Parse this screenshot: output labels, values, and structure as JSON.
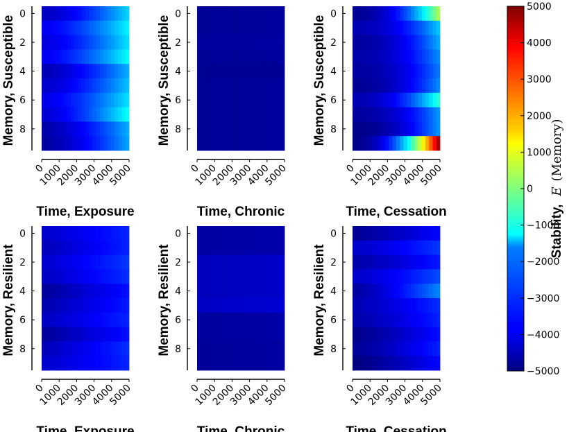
{
  "chart_data": {
    "type": "heatmap",
    "x_ticks": [
      "0",
      "1000",
      "2000",
      "3000",
      "4000",
      "5000"
    ],
    "x_tick_values": [
      0,
      1000,
      2000,
      3000,
      4000,
      5000
    ],
    "xlim": [
      0,
      5000
    ],
    "y_ticks": [
      "0",
      "2",
      "4",
      "6",
      "8"
    ],
    "y_tick_values": [
      0,
      2,
      4,
      6,
      8
    ],
    "ylim": [
      9.5,
      -0.5
    ],
    "colorbar": {
      "label_bold": "Stability,",
      "label_math": "E (Memory)",
      "ticks": [
        "5000",
        "4000",
        "3000",
        "2000",
        "1000",
        "0",
        "−1000",
        "−2000",
        "−3000",
        "−4000",
        "−5000"
      ],
      "tick_values": [
        5000,
        4000,
        3000,
        2000,
        1000,
        0,
        -1000,
        -2000,
        -3000,
        -4000,
        -5000
      ],
      "range": [
        -5000,
        5000
      ],
      "colormap": "jet"
    },
    "panels": [
      {
        "id": "susceptible-exposure",
        "xlabel": "Time, Exposure",
        "ylabel": "Memory, Susceptible",
        "row_start": [
          -4400,
          -3900,
          -4100,
          -3900,
          -4500,
          -4300,
          -4000,
          -4200,
          -4600,
          -4700
        ],
        "row_end": [
          -1600,
          -1300,
          -1500,
          -1200,
          -2000,
          -1800,
          -1500,
          -1100,
          -2000,
          -2100
        ],
        "curve": 1.5,
        "stripes": 0
      },
      {
        "id": "susceptible-chronic",
        "xlabel": "Time, Chronic",
        "ylabel": "Memory, Susceptible",
        "row_start": [
          -4750,
          -4750,
          -4700,
          -4750,
          -4800,
          -4750,
          -4750,
          -4750,
          -4750,
          -4750
        ],
        "row_end": [
          -4700,
          -4700,
          -4650,
          -4700,
          -4750,
          -4700,
          -4700,
          -4700,
          -4700,
          -4700
        ],
        "curve": 1,
        "stripes": 150
      },
      {
        "id": "susceptible-cessation",
        "xlabel": "Time, Cessation",
        "ylabel": "Memory, Susceptible",
        "row_start": [
          -4800,
          -4500,
          -4700,
          -4600,
          -4700,
          -4800,
          -4500,
          -4700,
          -4900,
          -4900
        ],
        "row_end": [
          600,
          -1700,
          -2000,
          -2300,
          -2500,
          -2300,
          -700,
          -2200,
          -2200,
          5000
        ],
        "curve": 2.2,
        "stripes": 0
      },
      {
        "id": "resilient-exposure",
        "xlabel": "Time, Exposure",
        "ylabel": "Memory, Resilient",
        "row_start": [
          -4300,
          -4500,
          -4300,
          -4400,
          -4800,
          -4600,
          -4400,
          -4800,
          -4500,
          -4300
        ],
        "row_end": [
          -3400,
          -3400,
          -3200,
          -3300,
          -3600,
          -3500,
          -3400,
          -3600,
          -3300,
          -3400
        ],
        "curve": 1,
        "stripes": 0
      },
      {
        "id": "resilient-chronic",
        "xlabel": "Time, Chronic",
        "ylabel": "Memory, Resilient",
        "row_start": [
          -4650,
          -4650,
          -4400,
          -4400,
          -4400,
          -4300,
          -4700,
          -4700,
          -4750,
          -4750
        ],
        "row_end": [
          -4550,
          -4550,
          -4250,
          -4250,
          -4250,
          -4150,
          -4600,
          -4600,
          -4650,
          -4650
        ],
        "curve": 1,
        "stripes": 300
      },
      {
        "id": "resilient-cessation",
        "xlabel": "Time, Cessation",
        "ylabel": "Memory, Resilient",
        "row_start": [
          -4800,
          -4300,
          -4600,
          -4300,
          -4700,
          -4500,
          -4600,
          -4900,
          -4800,
          -5000
        ],
        "row_end": [
          -3700,
          -3200,
          -3500,
          -3000,
          -2400,
          -3300,
          -3400,
          -3600,
          -3400,
          -3700
        ],
        "curve": 1.3,
        "stripes": 0
      }
    ]
  }
}
